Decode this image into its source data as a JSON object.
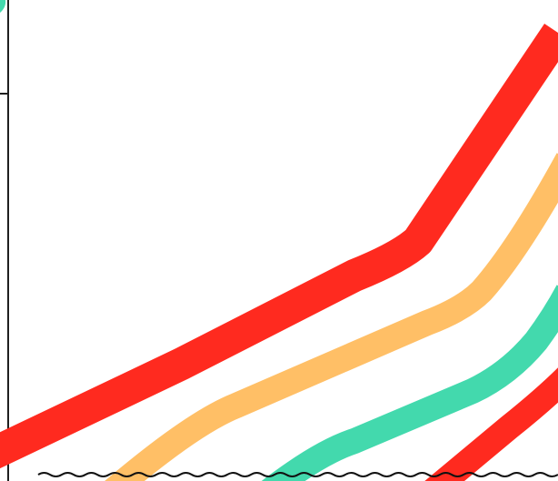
{
  "colors": {
    "background": "#ffffff",
    "axis": "#1f1f1f",
    "red": "#ff2a1f",
    "orange": "#ffbf66",
    "teal": "#43d9ad",
    "wave": "#111111"
  },
  "stripes": [
    {
      "name": "red-stripe-upper",
      "color_key": "red"
    },
    {
      "name": "orange-stripe",
      "color_key": "orange"
    },
    {
      "name": "teal-stripe",
      "color_key": "teal"
    },
    {
      "name": "red-stripe-lower",
      "color_key": "red"
    }
  ]
}
